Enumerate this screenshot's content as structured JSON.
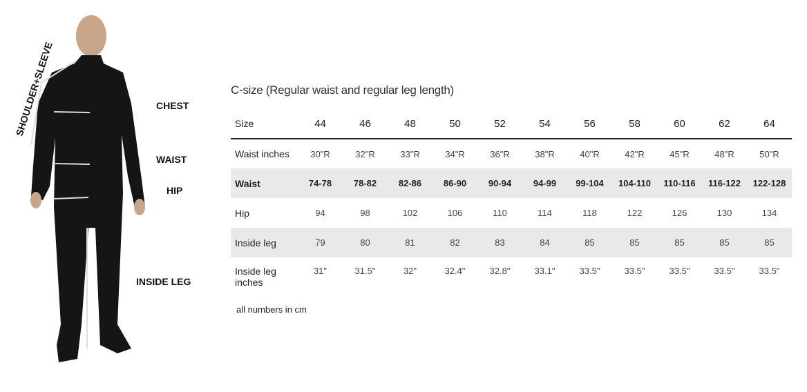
{
  "figure": {
    "labels": {
      "shoulder_sleeve": "SHOULDER+SLEEVE",
      "chest": "CHEST",
      "waist": "WAIST",
      "hip": "HIP",
      "inside_leg": "INSIDE LEG"
    }
  },
  "table": {
    "title": "C-size (Regular waist and regular leg length)",
    "header": [
      "Size",
      "44",
      "46",
      "48",
      "50",
      "52",
      "54",
      "56",
      "58",
      "60",
      "62",
      "64"
    ],
    "rows": [
      [
        "Waist inches",
        "30\"R",
        "32\"R",
        "33\"R",
        "34\"R",
        "36\"R",
        "38\"R",
        "40\"R",
        "42\"R",
        "45\"R",
        "48\"R",
        "50\"R"
      ],
      [
        "Waist",
        "74-78",
        "78-82",
        "82-86",
        "86-90",
        "90-94",
        "94-99",
        "99-104",
        "104-110",
        "110-116",
        "116-122",
        "122-128"
      ],
      [
        "Hip",
        "94",
        "98",
        "102",
        "106",
        "110",
        "114",
        "118",
        "122",
        "126",
        "130",
        "134"
      ],
      [
        "Inside leg",
        "79",
        "80",
        "81",
        "82",
        "83",
        "84",
        "85",
        "85",
        "85",
        "85",
        "85"
      ],
      [
        "Inside leg inches",
        "31\"",
        "31.5\"",
        "32\"",
        "32.4\"",
        "32.8\"",
        "33.1\"",
        "33.5\"",
        "33.5\"",
        "33.5\"",
        "33.5\"",
        "33.5\""
      ]
    ],
    "note": "all numbers in cm"
  }
}
